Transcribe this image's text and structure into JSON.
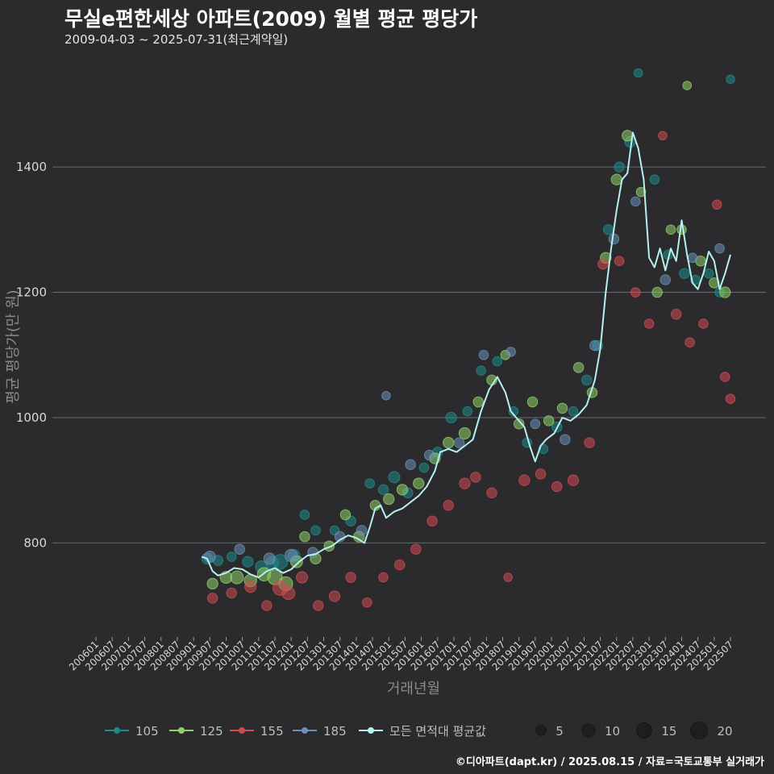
{
  "title": "무실e편한세상 아파트(2009) 월별 평균 평당가",
  "subtitle": "2009-04-03 ~ 2025-07-31(최근계약일)",
  "credit": "©디아파트(dapt.kr) / 2025.08.15 / 자료=국토교통부 실거래가",
  "colors": {
    "background": "#2b2a2c",
    "grid": "#6b6b6b",
    "s105": "#1f8a8a",
    "s125": "#8fd06a",
    "s155": "#d04a52",
    "s185": "#6a8fb8",
    "avg": "#b6f0f0"
  },
  "chart_data": {
    "type": "scatter",
    "xlabel": "거래년월",
    "ylabel": "평균 평당가(만 원)",
    "ylim": [
      650,
      1570
    ],
    "yticks": [
      800,
      1000,
      1200,
      1400
    ],
    "grid": true,
    "legend_placement": "bottom",
    "xticks": [
      "200601",
      "200607",
      "200701",
      "200707",
      "200801",
      "200807",
      "200901",
      "200907",
      "201001",
      "201007",
      "201101",
      "201107",
      "201201",
      "201207",
      "201301",
      "201307",
      "201401",
      "201407",
      "201501",
      "201507",
      "201601",
      "201607",
      "201701",
      "201707",
      "201801",
      "201807",
      "201901",
      "201907",
      "202001",
      "202007",
      "202101",
      "202107",
      "202201",
      "202207",
      "202301",
      "202307",
      "202401",
      "202407",
      "202501",
      "202507"
    ],
    "series": [
      {
        "name": "105",
        "color": "#1f8a8a",
        "points": [
          [
            "2009-06",
            775,
            6
          ],
          [
            "2009-10",
            772,
            5
          ],
          [
            "2010-03",
            778,
            4
          ],
          [
            "2010-09",
            770,
            6
          ],
          [
            "2011-02",
            762,
            8
          ],
          [
            "2011-06",
            768,
            10
          ],
          [
            "2011-09",
            770,
            14
          ],
          [
            "2012-02",
            780,
            8
          ],
          [
            "2012-06",
            845,
            4
          ],
          [
            "2012-10",
            820,
            4
          ],
          [
            "2013-05",
            820,
            4
          ],
          [
            "2013-11",
            835,
            5
          ],
          [
            "2014-06",
            895,
            4
          ],
          [
            "2014-11",
            885,
            5
          ],
          [
            "2015-03",
            905,
            7
          ],
          [
            "2015-08",
            880,
            5
          ],
          [
            "2016-02",
            920,
            4
          ],
          [
            "2016-07",
            945,
            5
          ],
          [
            "2016-12",
            1000,
            6
          ],
          [
            "2017-06",
            1010,
            4
          ],
          [
            "2017-11",
            1075,
            4
          ],
          [
            "2018-05",
            1090,
            4
          ],
          [
            "2018-11",
            1010,
            4
          ],
          [
            "2019-04",
            960,
            4
          ],
          [
            "2019-10",
            950,
            4
          ],
          [
            "2020-03",
            985,
            5
          ],
          [
            "2020-09",
            1010,
            4
          ],
          [
            "2021-02",
            1060,
            5
          ],
          [
            "2021-06",
            1115,
            5
          ],
          [
            "2021-10",
            1300,
            5
          ],
          [
            "2022-02",
            1400,
            5
          ],
          [
            "2022-06",
            1440,
            6
          ],
          [
            "2022-09",
            1550,
            3
          ],
          [
            "2023-03",
            1380,
            4
          ],
          [
            "2023-08",
            1260,
            4
          ],
          [
            "2024-02",
            1230,
            5
          ],
          [
            "2024-06",
            1220,
            4
          ],
          [
            "2024-11",
            1230,
            4
          ],
          [
            "2025-03",
            1200,
            4
          ],
          [
            "2025-07",
            1540,
            3
          ]
        ]
      },
      {
        "name": "125",
        "color": "#8fd06a",
        "points": [
          [
            "2009-08",
            735,
            6
          ],
          [
            "2010-01",
            745,
            8
          ],
          [
            "2010-05",
            745,
            10
          ],
          [
            "2010-10",
            740,
            9
          ],
          [
            "2011-03",
            750,
            11
          ],
          [
            "2011-07",
            745,
            14
          ],
          [
            "2011-11",
            735,
            12
          ],
          [
            "2012-03",
            770,
            8
          ],
          [
            "2012-06",
            810,
            5
          ],
          [
            "2012-10",
            775,
            6
          ],
          [
            "2013-03",
            795,
            5
          ],
          [
            "2013-09",
            845,
            5
          ],
          [
            "2014-02",
            810,
            6
          ],
          [
            "2014-08",
            860,
            5
          ],
          [
            "2015-01",
            870,
            6
          ],
          [
            "2015-06",
            885,
            6
          ],
          [
            "2015-12",
            895,
            6
          ],
          [
            "2016-06",
            935,
            6
          ],
          [
            "2016-11",
            960,
            6
          ],
          [
            "2017-05",
            975,
            7
          ],
          [
            "2017-10",
            1025,
            5
          ],
          [
            "2018-03",
            1060,
            5
          ],
          [
            "2018-08",
            1100,
            4
          ],
          [
            "2019-01",
            990,
            5
          ],
          [
            "2019-06",
            1025,
            5
          ],
          [
            "2019-12",
            995,
            5
          ],
          [
            "2020-05",
            1015,
            5
          ],
          [
            "2020-11",
            1080,
            5
          ],
          [
            "2021-04",
            1040,
            5
          ],
          [
            "2021-09",
            1255,
            6
          ],
          [
            "2022-01",
            1380,
            6
          ],
          [
            "2022-05",
            1450,
            6
          ],
          [
            "2022-10",
            1360,
            4
          ],
          [
            "2023-04",
            1200,
            5
          ],
          [
            "2023-09",
            1300,
            4
          ],
          [
            "2024-01",
            1300,
            4
          ],
          [
            "2024-03",
            1530,
            3
          ],
          [
            "2024-08",
            1250,
            5
          ],
          [
            "2025-01",
            1215,
            5
          ],
          [
            "2025-05",
            1200,
            6
          ]
        ]
      },
      {
        "name": "155",
        "color": "#d04a52",
        "points": [
          [
            "2009-08",
            712,
            5
          ],
          [
            "2010-03",
            720,
            5
          ],
          [
            "2010-10",
            730,
            7
          ],
          [
            "2011-04",
            700,
            5
          ],
          [
            "2011-09",
            728,
            14
          ],
          [
            "2011-12",
            720,
            10
          ],
          [
            "2012-05",
            745,
            7
          ],
          [
            "2012-11",
            700,
            5
          ],
          [
            "2013-05",
            715,
            6
          ],
          [
            "2013-11",
            745,
            5
          ],
          [
            "2014-05",
            705,
            4
          ],
          [
            "2014-11",
            745,
            4
          ],
          [
            "2015-05",
            765,
            5
          ],
          [
            "2015-11",
            790,
            5
          ],
          [
            "2016-05",
            835,
            5
          ],
          [
            "2016-11",
            860,
            5
          ],
          [
            "2017-05",
            895,
            6
          ],
          [
            "2017-09",
            905,
            5
          ],
          [
            "2018-03",
            880,
            5
          ],
          [
            "2018-09",
            745,
            3
          ],
          [
            "2019-03",
            900,
            6
          ],
          [
            "2019-09",
            910,
            5
          ],
          [
            "2020-03",
            890,
            5
          ],
          [
            "2020-09",
            900,
            6
          ],
          [
            "2021-03",
            960,
            5
          ],
          [
            "2021-08",
            1245,
            5
          ],
          [
            "2022-02",
            1250,
            4
          ],
          [
            "2022-08",
            1200,
            4
          ],
          [
            "2023-01",
            1150,
            4
          ],
          [
            "2023-06",
            1450,
            3
          ],
          [
            "2023-11",
            1165,
            5
          ],
          [
            "2024-04",
            1120,
            4
          ],
          [
            "2024-09",
            1150,
            4
          ],
          [
            "2025-02",
            1340,
            4
          ],
          [
            "2025-05",
            1065,
            4
          ],
          [
            "2025-07",
            1030,
            4
          ]
        ]
      },
      {
        "name": "185",
        "color": "#6a8fb8",
        "points": [
          [
            "2009-07",
            778,
            7
          ],
          [
            "2010-06",
            790,
            5
          ],
          [
            "2011-05",
            775,
            7
          ],
          [
            "2012-01",
            780,
            9
          ],
          [
            "2012-09",
            785,
            5
          ],
          [
            "2013-07",
            810,
            5
          ],
          [
            "2014-03",
            820,
            5
          ],
          [
            "2014-12",
            1035,
            3
          ],
          [
            "2015-09",
            925,
            5
          ],
          [
            "2016-04",
            940,
            5
          ],
          [
            "2017-03",
            960,
            5
          ],
          [
            "2017-12",
            1100,
            4
          ],
          [
            "2018-10",
            1105,
            4
          ],
          [
            "2019-07",
            990,
            4
          ],
          [
            "2020-06",
            965,
            5
          ],
          [
            "2021-05",
            1115,
            5
          ],
          [
            "2021-12",
            1285,
            5
          ],
          [
            "2022-08",
            1345,
            4
          ],
          [
            "2023-07",
            1220,
            5
          ],
          [
            "2024-05",
            1255,
            4
          ],
          [
            "2025-03",
            1270,
            4
          ]
        ]
      }
    ],
    "average": {
      "name": "모든 면적대 평균값",
      "color": "#b6f0f0",
      "points": [
        [
          "2009-04",
          778
        ],
        [
          "2009-06",
          775
        ],
        [
          "2009-08",
          755
        ],
        [
          "2009-10",
          748
        ],
        [
          "2010-01",
          752
        ],
        [
          "2010-04",
          760
        ],
        [
          "2010-07",
          758
        ],
        [
          "2010-10",
          750
        ],
        [
          "2011-01",
          745
        ],
        [
          "2011-04",
          755
        ],
        [
          "2011-07",
          760
        ],
        [
          "2011-10",
          752
        ],
        [
          "2012-01",
          758
        ],
        [
          "2012-04",
          770
        ],
        [
          "2012-07",
          780
        ],
        [
          "2012-10",
          782
        ],
        [
          "2013-01",
          790
        ],
        [
          "2013-04",
          795
        ],
        [
          "2013-07",
          805
        ],
        [
          "2013-10",
          812
        ],
        [
          "2014-01",
          808
        ],
        [
          "2014-04",
          800
        ],
        [
          "2014-06",
          825
        ],
        [
          "2014-08",
          855
        ],
        [
          "2014-10",
          860
        ],
        [
          "2014-12",
          840
        ],
        [
          "2015-03",
          850
        ],
        [
          "2015-06",
          855
        ],
        [
          "2015-09",
          865
        ],
        [
          "2015-12",
          875
        ],
        [
          "2016-03",
          890
        ],
        [
          "2016-06",
          915
        ],
        [
          "2016-08",
          945
        ],
        [
          "2016-11",
          950
        ],
        [
          "2017-02",
          945
        ],
        [
          "2017-05",
          955
        ],
        [
          "2017-08",
          965
        ],
        [
          "2017-11",
          1010
        ],
        [
          "2018-02",
          1045
        ],
        [
          "2018-05",
          1065
        ],
        [
          "2018-08",
          1040
        ],
        [
          "2018-10",
          1010
        ],
        [
          "2018-12",
          1000
        ],
        [
          "2019-03",
          985
        ],
        [
          "2019-05",
          955
        ],
        [
          "2019-07",
          930
        ],
        [
          "2019-09",
          955
        ],
        [
          "2019-11",
          965
        ],
        [
          "2020-02",
          975
        ],
        [
          "2020-05",
          1000
        ],
        [
          "2020-08",
          995
        ],
        [
          "2020-11",
          1005
        ],
        [
          "2021-02",
          1020
        ],
        [
          "2021-05",
          1060
        ],
        [
          "2021-07",
          1110
        ],
        [
          "2021-09",
          1200
        ],
        [
          "2021-11",
          1270
        ],
        [
          "2022-01",
          1330
        ],
        [
          "2022-03",
          1380
        ],
        [
          "2022-05",
          1390
        ],
        [
          "2022-07",
          1455
        ],
        [
          "2022-09",
          1430
        ],
        [
          "2022-11",
          1380
        ],
        [
          "2023-01",
          1255
        ],
        [
          "2023-03",
          1240
        ],
        [
          "2023-05",
          1270
        ],
        [
          "2023-07",
          1235
        ],
        [
          "2023-09",
          1270
        ],
        [
          "2023-11",
          1250
        ],
        [
          "2024-01",
          1315
        ],
        [
          "2024-03",
          1260
        ],
        [
          "2024-05",
          1215
        ],
        [
          "2024-07",
          1205
        ],
        [
          "2024-09",
          1230
        ],
        [
          "2024-11",
          1265
        ],
        [
          "2025-01",
          1250
        ],
        [
          "2025-03",
          1205
        ],
        [
          "2025-05",
          1230
        ],
        [
          "2025-07",
          1260
        ]
      ]
    },
    "size_legend": [
      {
        "label": "5",
        "value": 5
      },
      {
        "label": "10",
        "value": 10
      },
      {
        "label": "15",
        "value": 15
      },
      {
        "label": "20",
        "value": 20
      }
    ]
  }
}
